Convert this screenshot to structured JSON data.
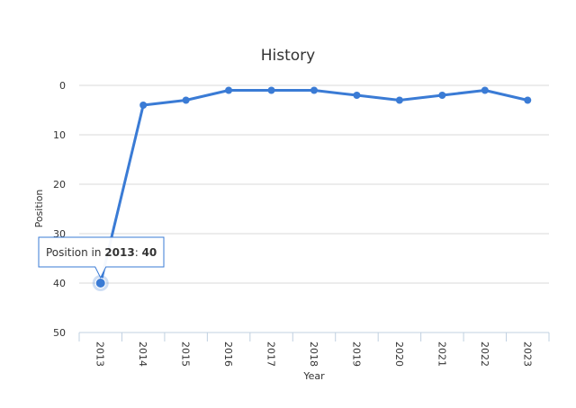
{
  "chart_data": {
    "type": "line",
    "title": "History",
    "xlabel": "Year",
    "ylabel": "Position",
    "categories": [
      "2013",
      "2014",
      "2015",
      "2016",
      "2017",
      "2018",
      "2019",
      "2020",
      "2021",
      "2022",
      "2023"
    ],
    "values": [
      40,
      4,
      3,
      1,
      1,
      1,
      2,
      3,
      2,
      1,
      3
    ],
    "y_ticks": [
      "0",
      "10",
      "20",
      "30",
      "40",
      "50"
    ],
    "ylim": [
      0,
      50
    ],
    "y_reversed": true,
    "grid": true,
    "line_color": "#3a7bd5",
    "tooltip": {
      "prefix": "Position in ",
      "year": "2013",
      "separator": ": ",
      "value": "40"
    }
  }
}
